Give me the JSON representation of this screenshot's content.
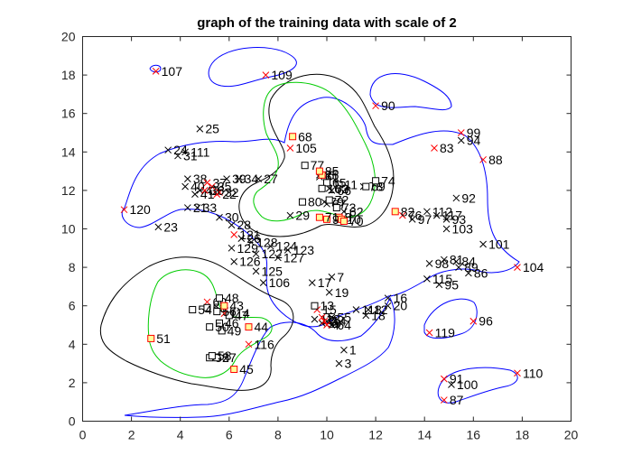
{
  "chart_data": {
    "type": "scatter",
    "title": "graph of the training data with scale of 2",
    "xlabel": "",
    "ylabel": "",
    "xlim": [
      0,
      20
    ],
    "ylim": [
      0,
      20
    ],
    "xticks": [
      0,
      2,
      4,
      6,
      8,
      10,
      12,
      14,
      16,
      18,
      20
    ],
    "yticks": [
      0,
      2,
      4,
      6,
      8,
      10,
      12,
      14,
      16,
      18,
      20
    ],
    "grid": false,
    "legend": "none",
    "colors": {
      "blue_contour": "#0000ff",
      "green_contour": "#00cc00",
      "black_contour": "#000000",
      "red_marker": "#ff0000",
      "black_marker": "#000000"
    },
    "series": [
      {
        "marker": "x",
        "points": [
          {
            "label": "1",
            "x": 10.7,
            "y": 3.7
          },
          {
            "label": "3",
            "x": 10.5,
            "y": 3.0
          },
          {
            "label": "7",
            "x": 10.2,
            "y": 7.5
          },
          {
            "label": "12",
            "x": 11.7,
            "y": 5.8
          },
          {
            "label": "14",
            "x": 10.0,
            "y": 5.2
          },
          {
            "label": "16",
            "x": 12.5,
            "y": 6.4
          },
          {
            "label": "17",
            "x": 9.4,
            "y": 7.2
          },
          {
            "label": "18",
            "x": 11.6,
            "y": 5.5
          },
          {
            "label": "19",
            "x": 10.1,
            "y": 6.7
          },
          {
            "label": "20",
            "x": 12.5,
            "y": 6.0
          },
          {
            "label": "21",
            "x": 4.3,
            "y": 11.1
          },
          {
            "label": "23",
            "x": 3.1,
            "y": 10.1
          },
          {
            "label": "24",
            "x": 3.5,
            "y": 14.1
          },
          {
            "label": "25",
            "x": 4.8,
            "y": 15.2
          },
          {
            "label": "26",
            "x": 6.5,
            "y": 9.5
          },
          {
            "label": "27",
            "x": 7.2,
            "y": 12.6
          },
          {
            "label": "28",
            "x": 6.1,
            "y": 10.2
          },
          {
            "label": "29",
            "x": 8.5,
            "y": 10.7
          },
          {
            "label": "30",
            "x": 5.6,
            "y": 10.6
          },
          {
            "label": "31",
            "x": 3.9,
            "y": 13.8
          },
          {
            "label": "33",
            "x": 4.7,
            "y": 11.1
          },
          {
            "label": "34",
            "x": 6.4,
            "y": 12.6
          },
          {
            "label": "38",
            "x": 4.3,
            "y": 12.6
          },
          {
            "label": "39",
            "x": 5.9,
            "y": 12.6
          },
          {
            "label": "40",
            "x": 4.2,
            "y": 12.2
          },
          {
            "label": "41",
            "x": 4.6,
            "y": 11.8
          },
          {
            "label": "42",
            "x": 4.8,
            "y": 12.0
          },
          {
            "label": "55",
            "x": 10.2,
            "y": 5.4
          },
          {
            "label": "59",
            "x": 9.8,
            "y": 5.1
          },
          {
            "label": "61",
            "x": 9.7,
            "y": 12.7
          },
          {
            "label": "62",
            "x": 10.7,
            "y": 10.9
          },
          {
            "label": "63",
            "x": 10.1,
            "y": 12.1
          },
          {
            "label": "64",
            "x": 10.2,
            "y": 5.0
          },
          {
            "label": "66",
            "x": 10.2,
            "y": 12.0
          },
          {
            "label": "67",
            "x": 10.0,
            "y": 11.3
          },
          {
            "label": "75",
            "x": 9.7,
            "y": 12.8
          },
          {
            "label": "78",
            "x": 11.5,
            "y": 12.2
          },
          {
            "label": "79",
            "x": 9.9,
            "y": 11.4
          },
          {
            "label": "81",
            "x": 14.8,
            "y": 8.4
          },
          {
            "label": "84",
            "x": 15.3,
            "y": 8.3
          },
          {
            "label": "86",
            "x": 15.8,
            "y": 7.7
          },
          {
            "label": "89",
            "x": 15.4,
            "y": 8.0
          },
          {
            "label": "92",
            "x": 15.3,
            "y": 11.6
          },
          {
            "label": "93",
            "x": 14.9,
            "y": 10.5
          },
          {
            "label": "94",
            "x": 15.5,
            "y": 14.6
          },
          {
            "label": "95",
            "x": 14.6,
            "y": 7.1
          },
          {
            "label": "97",
            "x": 13.5,
            "y": 10.5
          },
          {
            "label": "98",
            "x": 14.2,
            "y": 8.2
          },
          {
            "label": "100",
            "x": 15.1,
            "y": 1.9
          },
          {
            "label": "101",
            "x": 16.4,
            "y": 9.2
          },
          {
            "label": "103",
            "x": 14.9,
            "y": 10.0
          },
          {
            "label": "106",
            "x": 7.4,
            "y": 7.2
          },
          {
            "label": "111",
            "x": 4.2,
            "y": 14.0
          },
          {
            "label": "112",
            "x": 14.1,
            "y": 10.9
          },
          {
            "label": "113",
            "x": 9.5,
            "y": 5.3
          },
          {
            "label": "115",
            "x": 14.1,
            "y": 7.4
          },
          {
            "label": "117",
            "x": 14.5,
            "y": 10.7
          },
          {
            "label": "118",
            "x": 11.2,
            "y": 5.8
          },
          {
            "label": "122",
            "x": 7.1,
            "y": 8.7
          },
          {
            "label": "123",
            "x": 8.4,
            "y": 8.9
          },
          {
            "label": "124",
            "x": 7.7,
            "y": 9.1
          },
          {
            "label": "125",
            "x": 7.1,
            "y": 7.8
          },
          {
            "label": "126",
            "x": 6.2,
            "y": 8.3
          },
          {
            "label": "127",
            "x": 8.0,
            "y": 8.5
          },
          {
            "label": "128",
            "x": 6.9,
            "y": 9.3
          },
          {
            "label": "129",
            "x": 6.1,
            "y": 9.0
          }
        ]
      },
      {
        "marker": "x-red",
        "points": [
          {
            "label": "2",
            "x": 9.9,
            "y": 5.2
          },
          {
            "label": "4",
            "x": 10.0,
            "y": 5.0
          },
          {
            "label": "5",
            "x": 9.8,
            "y": 5.4
          },
          {
            "label": "15",
            "x": 9.6,
            "y": 5.8
          },
          {
            "label": "22",
            "x": 5.5,
            "y": 11.8
          },
          {
            "label": "32",
            "x": 5.6,
            "y": 11.9
          },
          {
            "label": "35",
            "x": 5.3,
            "y": 12.2
          },
          {
            "label": "36",
            "x": 5.0,
            "y": 12.0
          },
          {
            "label": "37",
            "x": 5.1,
            "y": 12.4
          },
          {
            "label": "60",
            "x": 5.1,
            "y": 6.2
          },
          {
            "label": "76",
            "x": 13.1,
            "y": 10.7
          },
          {
            "label": "83",
            "x": 14.4,
            "y": 14.2
          },
          {
            "label": "87",
            "x": 14.8,
            "y": 1.1
          },
          {
            "label": "88",
            "x": 16.4,
            "y": 13.6
          },
          {
            "label": "90",
            "x": 12.0,
            "y": 16.4
          },
          {
            "label": "91",
            "x": 14.8,
            "y": 2.2
          },
          {
            "label": "96",
            "x": 16.0,
            "y": 5.2
          },
          {
            "label": "99",
            "x": 15.5,
            "y": 15.0
          },
          {
            "label": "104",
            "x": 17.8,
            "y": 8.0
          },
          {
            "label": "105",
            "x": 8.5,
            "y": 14.2
          },
          {
            "label": "107",
            "x": 3.0,
            "y": 18.2
          },
          {
            "label": "109",
            "x": 7.5,
            "y": 18.0
          },
          {
            "label": "110",
            "x": 17.8,
            "y": 2.5
          },
          {
            "label": "114",
            "x": 5.8,
            "y": 5.6
          },
          {
            "label": "116",
            "x": 6.8,
            "y": 4.0
          },
          {
            "label": "119",
            "x": 14.2,
            "y": 4.6
          },
          {
            "label": "120",
            "x": 1.7,
            "y": 11.0
          },
          {
            "label": "121",
            "x": 6.2,
            "y": 9.7
          }
        ]
      },
      {
        "marker": "square",
        "points": [
          {
            "label": "11",
            "x": 10.5,
            "y": 12.3
          },
          {
            "label": "13",
            "x": 9.5,
            "y": 6.0
          },
          {
            "label": "46",
            "x": 5.6,
            "y": 5.1
          },
          {
            "label": "47",
            "x": 6.0,
            "y": 5.5
          },
          {
            "label": "48",
            "x": 5.6,
            "y": 6.4
          },
          {
            "label": "49",
            "x": 5.7,
            "y": 4.7
          },
          {
            "label": "50",
            "x": 5.2,
            "y": 4.9
          },
          {
            "label": "52",
            "x": 5.2,
            "y": 3.3
          },
          {
            "label": "53",
            "x": 5.1,
            "y": 5.9
          },
          {
            "label": "54",
            "x": 4.5,
            "y": 5.8
          },
          {
            "label": "56",
            "x": 5.5,
            "y": 5.7
          },
          {
            "label": "57",
            "x": 5.5,
            "y": 3.3
          },
          {
            "label": "58",
            "x": 5.3,
            "y": 3.4
          },
          {
            "label": "65",
            "x": 10.0,
            "y": 12.4
          },
          {
            "label": "69",
            "x": 11.6,
            "y": 12.2
          },
          {
            "label": "72",
            "x": 10.1,
            "y": 11.5
          },
          {
            "label": "73",
            "x": 10.4,
            "y": 11.1
          },
          {
            "label": "74",
            "x": 12.0,
            "y": 12.5
          },
          {
            "label": "77",
            "x": 9.1,
            "y": 13.3
          },
          {
            "label": "80",
            "x": 9.0,
            "y": 11.4
          },
          {
            "label": "102",
            "x": 9.8,
            "y": 12.1
          }
        ]
      },
      {
        "marker": "square-red",
        "points": [
          {
            "label": "6",
            "x": 9.8,
            "y": 12.8
          },
          {
            "label": "8",
            "x": 10.5,
            "y": 10.6
          },
          {
            "label": "9",
            "x": 10.0,
            "y": 10.5
          },
          {
            "label": "10",
            "x": 10.6,
            "y": 10.5
          },
          {
            "label": "43",
            "x": 5.8,
            "y": 6.0
          },
          {
            "label": "44",
            "x": 6.8,
            "y": 4.9
          },
          {
            "label": "45",
            "x": 6.2,
            "y": 2.7
          },
          {
            "label": "51",
            "x": 2.8,
            "y": 4.3
          },
          {
            "label": "68",
            "x": 8.6,
            "y": 14.8
          },
          {
            "label": "70",
            "x": 10.7,
            "y": 10.4
          },
          {
            "label": "71",
            "x": 9.7,
            "y": 10.6
          },
          {
            "label": "82",
            "x": 12.8,
            "y": 10.9
          },
          {
            "label": "85",
            "x": 9.7,
            "y": 13.0
          }
        ]
      }
    ]
  }
}
